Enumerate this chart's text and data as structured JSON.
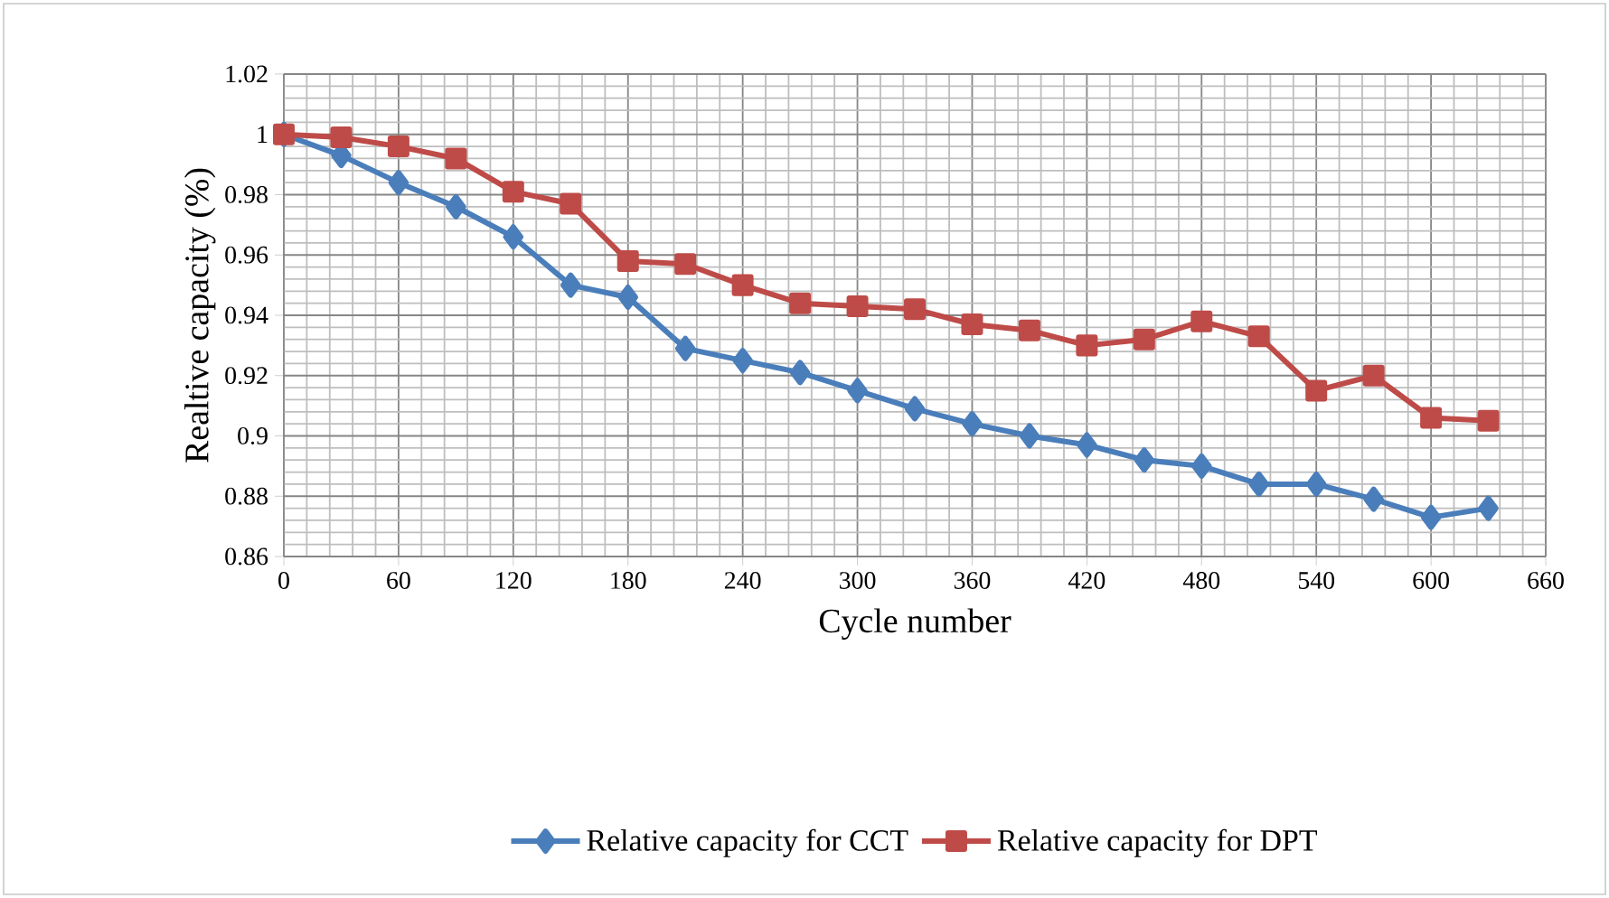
{
  "chart_data": {
    "type": "line",
    "xlabel": "Cycle number",
    "ylabel": "Realtive capacity (%)",
    "x": [
      0,
      30,
      60,
      90,
      120,
      150,
      180,
      210,
      240,
      270,
      300,
      330,
      360,
      390,
      420,
      450,
      480,
      510,
      540,
      570,
      600,
      630
    ],
    "series": [
      {
        "name": "Relative capacity for CCT",
        "color": "#4a7ebb",
        "marker": "diamond",
        "values": [
          1.0,
          0.993,
          0.984,
          0.976,
          0.966,
          0.95,
          0.946,
          0.929,
          0.925,
          0.921,
          0.915,
          0.909,
          0.904,
          0.9,
          0.897,
          0.892,
          0.89,
          0.884,
          0.884,
          0.879,
          0.873,
          0.876
        ]
      },
      {
        "name": "Relative capacity for DPT",
        "color": "#be4b48",
        "marker": "square",
        "values": [
          1.0,
          0.999,
          0.996,
          0.992,
          0.981,
          0.977,
          0.958,
          0.957,
          0.95,
          0.944,
          0.943,
          0.942,
          0.937,
          0.935,
          0.93,
          0.932,
          0.938,
          0.933,
          0.915,
          0.92,
          0.906,
          0.905
        ]
      }
    ],
    "xlim": [
      0,
      660
    ],
    "xticks": [
      0,
      60,
      120,
      180,
      240,
      300,
      360,
      420,
      480,
      540,
      600,
      660
    ],
    "ylim": [
      0.86,
      1.02
    ],
    "yticks": [
      0.86,
      0.88,
      0.9,
      0.92,
      0.94,
      0.96,
      0.98,
      1,
      1.02
    ],
    "grid": true,
    "legend": "bottom",
    "line_style": "solid"
  }
}
